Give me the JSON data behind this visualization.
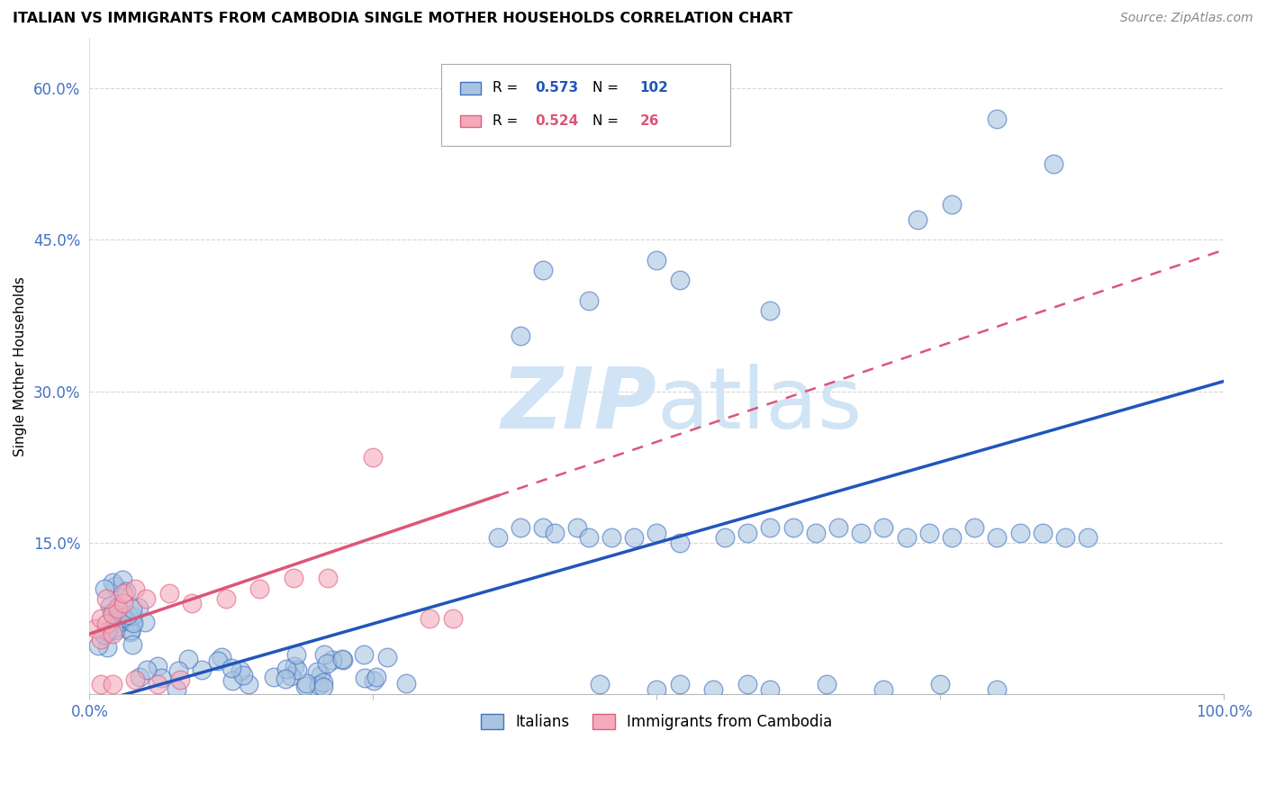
{
  "title": "ITALIAN VS IMMIGRANTS FROM CAMBODIA SINGLE MOTHER HOUSEHOLDS CORRELATION CHART",
  "source": "Source: ZipAtlas.com",
  "ylabel": "Single Mother Households",
  "xlim": [
    0.0,
    1.0
  ],
  "ylim": [
    0.0,
    0.65
  ],
  "ytick_positions": [
    0.0,
    0.15,
    0.3,
    0.45,
    0.6
  ],
  "ytick_labels": [
    "",
    "15.0%",
    "30.0%",
    "45.0%",
    "60.0%"
  ],
  "xtick_positions": [
    0.0,
    0.25,
    0.5,
    0.75,
    1.0
  ],
  "xtick_labels": [
    "0.0%",
    "",
    "",
    "",
    "100.0%"
  ],
  "blue_R": 0.573,
  "blue_N": 102,
  "pink_R": 0.524,
  "pink_N": 26,
  "blue_color": "#A8C4E0",
  "pink_color": "#F4AABB",
  "blue_edge_color": "#4472C4",
  "pink_edge_color": "#E06080",
  "blue_line_color": "#2255BB",
  "pink_line_color": "#DD5577",
  "watermark_color": "#D0E4F5",
  "legend_blue_label": "Italians",
  "legend_pink_label": "Immigrants from Cambodia",
  "axis_label_color": "#4472C4",
  "grid_color": "#CCCCCC",
  "blue_slope": 0.32,
  "blue_intercept": -0.01,
  "pink_slope": 0.38,
  "pink_intercept": 0.06
}
